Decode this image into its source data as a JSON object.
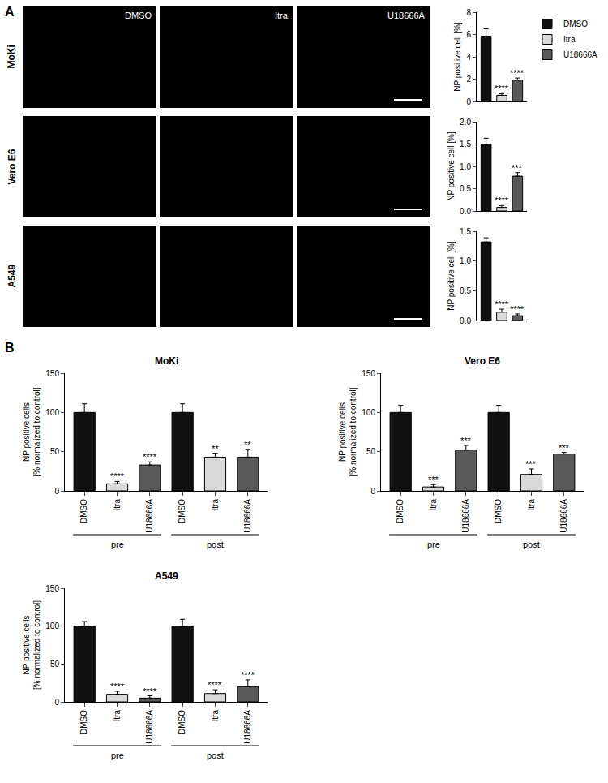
{
  "panel_labels": [
    "A",
    "B"
  ],
  "micrographs": {
    "rows": [
      "MoKi",
      "Vero E6",
      "A549"
    ],
    "columns": [
      "DMSO",
      "Itra",
      "U18666A"
    ]
  },
  "chart_data": [
    {
      "type": "bar",
      "ylabel": "NP positive cell [%]",
      "categories": [
        "DMSO",
        "Itra",
        "U18666A"
      ],
      "values": [
        5.85,
        0.55,
        1.9
      ],
      "errors": [
        0.65,
        0.15,
        0.2
      ],
      "colors": [
        "#111111",
        "#d9d9d9",
        "#595959"
      ],
      "ylim": [
        0,
        8
      ],
      "yticks": [
        0,
        2,
        4,
        6,
        8
      ],
      "tick_labels": "y",
      "legend": "upper right",
      "annotations": [
        {
          "index": 1,
          "text": "****"
        },
        {
          "index": 2,
          "text": "****"
        }
      ]
    },
    {
      "type": "bar",
      "ylabel": "NP positive cell [%]",
      "categories": [
        "DMSO",
        "Itra",
        "U18666A"
      ],
      "values": [
        1.5,
        0.08,
        0.78
      ],
      "errors": [
        0.13,
        0.04,
        0.08
      ],
      "colors": [
        "#111111",
        "#d9d9d9",
        "#595959"
      ],
      "ylim": [
        0,
        2
      ],
      "yticks": [
        {
          "value": 0,
          "label": "0.0"
        },
        {
          "value": 0.5,
          "label": "0.5"
        },
        {
          "value": 1,
          "label": "1.0"
        },
        {
          "value": 1.5,
          "label": "1.5"
        },
        {
          "value": 2,
          "label": "2.0"
        }
      ],
      "tick_labels": "y",
      "annotations": [
        {
          "index": 1,
          "text": "****"
        },
        {
          "index": 2,
          "text": "***"
        }
      ]
    },
    {
      "type": "bar",
      "ylabel": "NP positive cell [%]",
      "categories": [
        "DMSO",
        "Itra",
        "U18666A"
      ],
      "values": [
        1.32,
        0.14,
        0.08
      ],
      "errors": [
        0.07,
        0.05,
        0.03
      ],
      "colors": [
        "#111111",
        "#d9d9d9",
        "#595959"
      ],
      "ylim": [
        0,
        1.5
      ],
      "yticks": [
        {
          "value": 0,
          "label": "0.0"
        },
        {
          "value": 0.5,
          "label": "0.5"
        },
        {
          "value": 1,
          "label": "1.0"
        },
        {
          "value": 1.5,
          "label": "1.5"
        }
      ],
      "tick_labels": "y",
      "annotations": [
        {
          "index": 1,
          "text": "****"
        },
        {
          "index": 2,
          "text": "****"
        }
      ]
    },
    {
      "type": "bar",
      "title": "MoKi",
      "ylabel": "NP positive cells\n[% normalized to control]",
      "categories": [
        "DMSO",
        "Itra",
        "U18666A",
        "DMSO",
        "Itra",
        "U18666A"
      ],
      "groups": [
        "pre",
        "pre",
        "pre",
        "post",
        "post",
        "post"
      ],
      "values": [
        100,
        9,
        33,
        100,
        43,
        43
      ],
      "errors": [
        11,
        3,
        4,
        11,
        5,
        10
      ],
      "colors": [
        "#111111",
        "#d9d9d9",
        "#595959",
        "#111111",
        "#d9d9d9",
        "#595959"
      ],
      "ylim": [
        0,
        150
      ],
      "yticks": [
        0,
        50,
        100,
        150
      ],
      "annotations": [
        {
          "index": 1,
          "text": "****"
        },
        {
          "index": 2,
          "text": "****"
        },
        {
          "index": 4,
          "text": "**"
        },
        {
          "index": 5,
          "text": "**"
        }
      ]
    },
    {
      "type": "bar",
      "title": "Vero E6",
      "ylabel": "NP positive cells\n[% normalized to control]",
      "categories": [
        "DMSO",
        "Itra",
        "U18666A",
        "DMSO",
        "Itra",
        "U18666A"
      ],
      "groups": [
        "pre",
        "pre",
        "pre",
        "post",
        "post",
        "post"
      ],
      "values": [
        100,
        5,
        52,
        100,
        21,
        47
      ],
      "errors": [
        9,
        3,
        6,
        9,
        7,
        2
      ],
      "colors": [
        "#111111",
        "#d9d9d9",
        "#595959",
        "#111111",
        "#d9d9d9",
        "#595959"
      ],
      "ylim": [
        0,
        150
      ],
      "yticks": [
        0,
        50,
        100,
        150
      ],
      "annotations": [
        {
          "index": 1,
          "text": "***"
        },
        {
          "index": 2,
          "text": "***"
        },
        {
          "index": 4,
          "text": "***"
        },
        {
          "index": 5,
          "text": "***"
        }
      ]
    },
    {
      "type": "bar",
      "title": "A549",
      "ylabel": "NP positive cells\n[% normalized to control]",
      "categories": [
        "DMSO",
        "Itra",
        "U18666A",
        "DMSO",
        "Itra",
        "U18666A"
      ],
      "groups": [
        "pre",
        "pre",
        "pre",
        "post",
        "post",
        "post"
      ],
      "values": [
        100,
        10,
        5,
        100,
        11,
        20
      ],
      "errors": [
        6,
        4,
        3,
        9,
        5,
        9
      ],
      "colors": [
        "#111111",
        "#d9d9d9",
        "#595959",
        "#111111",
        "#d9d9d9",
        "#595959"
      ],
      "ylim": [
        0,
        150
      ],
      "yticks": [
        0,
        50,
        100,
        150
      ],
      "annotations": [
        {
          "index": 1,
          "text": "****"
        },
        {
          "index": 2,
          "text": "****"
        },
        {
          "index": 4,
          "text": "****"
        },
        {
          "index": 5,
          "text": "****"
        }
      ]
    }
  ]
}
